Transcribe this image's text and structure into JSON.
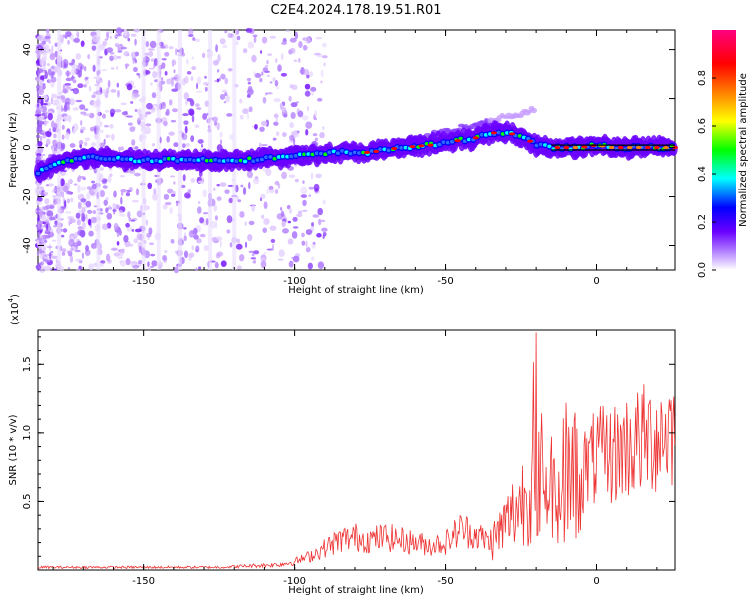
{
  "title": "C2E4.2024.178.19.51.R01",
  "chart_data": [
    {
      "type": "heatmap",
      "xlabel": "Height of straight line (km)",
      "ylabel": "Frequency (Hz)",
      "xlim": [
        -185,
        26
      ],
      "ylim": [
        -50,
        48
      ],
      "xticks": [
        -150,
        -100,
        -50,
        0
      ],
      "yticks": [
        -40,
        -20,
        0,
        20,
        40
      ],
      "trace": {
        "x": [
          -185,
          -175,
          -165,
          -155,
          -145,
          -135,
          -125,
          -115,
          -105,
          -95,
          -85,
          -75,
          -65,
          -55,
          -45,
          -40,
          -35,
          -30,
          -25,
          -20,
          -15,
          -10,
          -5,
          0,
          5,
          10,
          15,
          20,
          25
        ],
        "y": [
          -10,
          -5,
          -4,
          -5,
          -5,
          -5,
          -5,
          -5,
          -4,
          -3,
          -2,
          -2,
          0,
          1,
          3,
          4,
          6,
          6,
          5,
          1,
          0,
          0,
          0,
          1,
          0,
          0,
          0,
          0,
          0
        ]
      },
      "colorbar": {
        "label": "Normalized spectral amplitude",
        "range": [
          0,
          1
        ],
        "ticks": [
          "0.0",
          "0.2",
          "0.4",
          "0.6",
          "0.8"
        ],
        "colors": [
          "#ffffff",
          "#b07cff",
          "#6a00ff",
          "#0000ff",
          "#00ffff",
          "#00ff00",
          "#ffff00",
          "#ff7f00",
          "#ff0000",
          "#ff0080"
        ]
      }
    },
    {
      "type": "line",
      "xlabel": "Height of straight line (km)",
      "ylabel": "SNR (10 * v/v)",
      "yscale_label": "(x10",
      "yscale_exp": "4",
      "xlim": [
        -185,
        26
      ],
      "ylim": [
        0,
        1.75
      ],
      "xticks": [
        -150,
        -100,
        -50,
        0
      ],
      "yticks": [
        0.5,
        1.0,
        1.5
      ],
      "color": "#ee3333",
      "series": [
        {
          "x": [
            -185,
            -175,
            -165,
            -155,
            -145,
            -135,
            -125,
            -115,
            -105,
            -100,
            -95,
            -90,
            -85,
            -80,
            -75,
            -70,
            -65,
            -60,
            -55,
            -50,
            -45,
            -40,
            -35,
            -30,
            -25,
            -22,
            -20,
            -18,
            -16,
            -14,
            -12,
            -10,
            -8,
            -6,
            -4,
            -2,
            0,
            5,
            10,
            15,
            20,
            26
          ],
          "y": [
            0.02,
            0.02,
            0.02,
            0.02,
            0.02,
            0.02,
            0.02,
            0.03,
            0.04,
            0.06,
            0.1,
            0.16,
            0.22,
            0.24,
            0.22,
            0.24,
            0.22,
            0.2,
            0.18,
            0.2,
            0.3,
            0.26,
            0.2,
            0.34,
            0.5,
            0.6,
            0.66,
            0.7,
            0.6,
            0.64,
            0.62,
            0.7,
            0.72,
            0.68,
            0.74,
            0.78,
            0.82,
            0.84,
            0.9,
            0.94,
            0.98,
            1.05
          ]
        }
      ]
    }
  ]
}
